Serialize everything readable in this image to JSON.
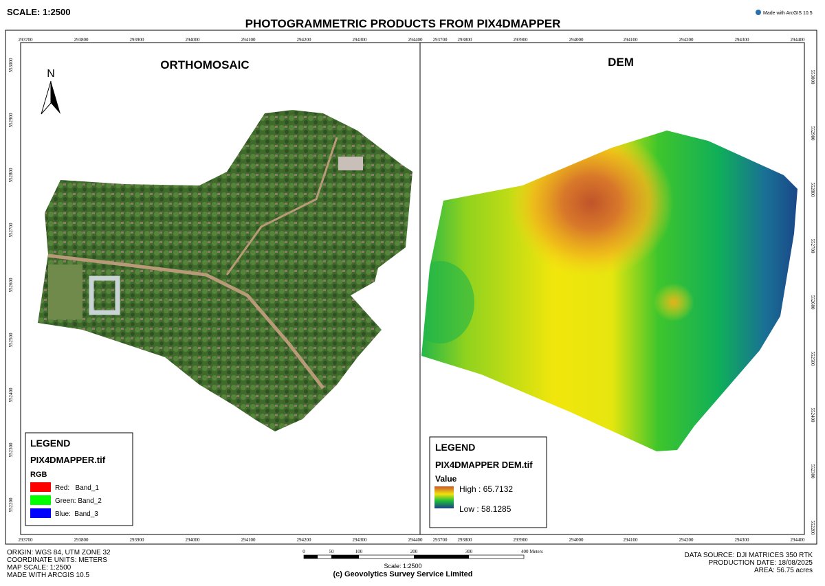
{
  "header": {
    "scale": "SCALE: 1:2500",
    "title": "PHOTOGRAMMETRIC PRODUCTS FROM PIX4DMAPPER",
    "made_with": "Made with ArcGIS 10.5"
  },
  "grid": {
    "x_labels": [
      "293700",
      "293800",
      "293900",
      "294000",
      "294100",
      "294200",
      "294300",
      "294400"
    ],
    "y_labels": [
      "553000",
      "552900",
      "552800",
      "552700",
      "552600",
      "552500",
      "552400",
      "552300",
      "552200"
    ]
  },
  "panels": [
    {
      "title": "ORTHOMOSAIC",
      "north": "N",
      "legend": {
        "title": "LEGEND",
        "layer": "PIX4DMAPPER.tif",
        "group": "RGB",
        "items": [
          "Red:   Band_1",
          "Green: Band_2",
          "Blue:  Band_3"
        ]
      }
    },
    {
      "title": "DEM",
      "legend": {
        "title": "LEGEND",
        "layer": "PIX4DMAPPER DEM.tif",
        "group": "Value",
        "high": "High : 65.7132",
        "low": "Low : 58.1285"
      }
    }
  ],
  "scale_bar": {
    "labels": [
      "0",
      "50",
      "100",
      "200",
      "300",
      "400 Meters"
    ],
    "caption": "Scale: 1:2500"
  },
  "footer": {
    "left": [
      "ORIGIN: WGS 84, UTM ZONE 32",
      "COORDINATE UNITS: METERS",
      "MAP SCALE: 1:2500",
      "MADE WITH ARCGIS 10.5"
    ],
    "right": [
      "DATA SOURCE: DJI MATRICES 350 RTK",
      "PRODUCTION DATE: 18/08/2025",
      "AREA: 56.75 acres"
    ],
    "credit": "(c) Geovolytics Survey Service Limited"
  }
}
